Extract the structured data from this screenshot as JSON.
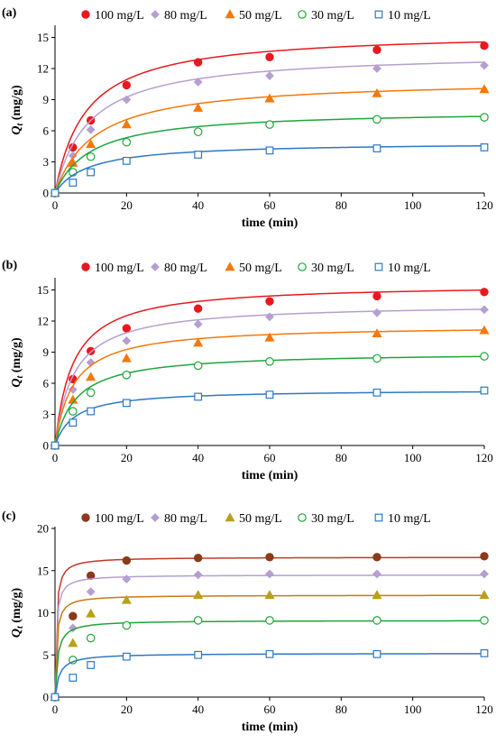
{
  "chart_data": [
    {
      "type": "scatter",
      "panel_label": "(a)",
      "xlabel": "time (min)",
      "ylabel": "Q",
      "ylabel_sub": "t",
      "ylabel_units": " (mg/g)",
      "xlim": [
        0,
        120
      ],
      "ylim": [
        0,
        16
      ],
      "xticks": [
        0,
        20,
        40,
        60,
        80,
        100,
        120
      ],
      "yticks": [
        0,
        3,
        6,
        9,
        12,
        15
      ],
      "x": [
        0,
        5,
        10,
        20,
        40,
        60,
        90,
        120
      ],
      "series": [
        {
          "name": "100 mg/L",
          "marker": "circle-filled",
          "color": "#e8191e",
          "line_color": "#e8191e",
          "qe": 15.6,
          "k": 0.0075,
          "values": [
            0,
            4.4,
            7.0,
            10.4,
            12.6,
            13.1,
            13.8,
            14.2
          ]
        },
        {
          "name": "80 mg/L",
          "marker": "diamond-filled",
          "color": "#b59fd0",
          "line_color": "#b59fd0",
          "qe": 13.6,
          "k": 0.0078,
          "values": [
            0,
            3.6,
            6.1,
            9.0,
            10.7,
            11.3,
            12.0,
            12.3
          ]
        },
        {
          "name": "50 mg/L",
          "marker": "triangle-filled",
          "color": "#f5780a",
          "line_color": "#f5780a",
          "qe": 11.0,
          "k": 0.0082,
          "values": [
            0,
            2.9,
            4.7,
            6.6,
            8.2,
            9.1,
            9.6,
            10.0
          ]
        },
        {
          "name": "30 mg/L",
          "marker": "circle-open",
          "color": "#1fa53c",
          "line_color": "#1fa53c",
          "qe": 8.0,
          "k": 0.0125,
          "values": [
            0,
            2.0,
            3.5,
            4.9,
            5.9,
            6.6,
            7.1,
            7.3
          ]
        },
        {
          "name": "10 mg/L",
          "marker": "square-open",
          "color": "#2e78c2",
          "line_color": "#2e78c2",
          "qe": 4.9,
          "k": 0.022,
          "values": [
            0,
            1.0,
            2.0,
            3.1,
            3.7,
            4.1,
            4.3,
            4.4
          ]
        }
      ]
    },
    {
      "type": "scatter",
      "panel_label": "(b)",
      "xlabel": "time (min)",
      "ylabel": "Q",
      "ylabel_sub": "t",
      "ylabel_units": " (mg/g)",
      "xlim": [
        0,
        120
      ],
      "ylim": [
        0,
        16
      ],
      "xticks": [
        0,
        20,
        40,
        60,
        80,
        100,
        120
      ],
      "yticks": [
        0,
        3,
        6,
        9,
        12,
        15
      ],
      "x": [
        0,
        5,
        10,
        20,
        40,
        60,
        90,
        120
      ],
      "series": [
        {
          "name": "100 mg/L",
          "marker": "circle-filled",
          "color": "#e8191e",
          "line_color": "#e8191e",
          "qe": 15.6,
          "k": 0.013,
          "values": [
            0,
            6.4,
            9.1,
            11.3,
            13.2,
            13.9,
            14.4,
            14.8
          ]
        },
        {
          "name": "80 mg/L",
          "marker": "diamond-filled",
          "color": "#b59fd0",
          "line_color": "#b59fd0",
          "qe": 13.7,
          "k": 0.014,
          "values": [
            0,
            5.4,
            8.0,
            10.1,
            11.7,
            12.4,
            12.8,
            13.1
          ]
        },
        {
          "name": "50 mg/L",
          "marker": "triangle-filled",
          "color": "#f5780a",
          "line_color": "#f5780a",
          "qe": 11.6,
          "k": 0.017,
          "values": [
            0,
            4.4,
            6.6,
            8.4,
            9.9,
            10.4,
            10.8,
            11.1
          ]
        },
        {
          "name": "30 mg/L",
          "marker": "circle-open",
          "color": "#1fa53c",
          "line_color": "#1fa53c",
          "qe": 9.0,
          "k": 0.019,
          "values": [
            0,
            3.3,
            5.1,
            6.8,
            7.7,
            8.1,
            8.4,
            8.6
          ]
        },
        {
          "name": "10 mg/L",
          "marker": "square-open",
          "color": "#2e78c2",
          "line_color": "#2e78c2",
          "qe": 5.4,
          "k": 0.035,
          "values": [
            0,
            2.2,
            3.3,
            4.1,
            4.7,
            4.9,
            5.1,
            5.3
          ]
        }
      ]
    },
    {
      "type": "scatter",
      "panel_label": "(c)",
      "xlabel": "time (min)",
      "ylabel": "Q",
      "ylabel_sub": "t",
      "ylabel_units": " (mg/g)",
      "xlim": [
        0,
        120
      ],
      "ylim": [
        0,
        20
      ],
      "xticks": [
        0,
        20,
        40,
        60,
        80,
        100,
        120
      ],
      "yticks": [
        0,
        5,
        10,
        15,
        20
      ],
      "x": [
        0,
        5,
        10,
        20,
        40,
        60,
        90,
        120
      ],
      "series": [
        {
          "name": "100 mg/L",
          "marker": "circle-filled",
          "color": "#8b3a1a",
          "line_color": "#c0392b",
          "qe": 16.6,
          "k": 0.18,
          "values": [
            0,
            9.6,
            14.4,
            16.2,
            16.5,
            16.6,
            16.6,
            16.7
          ]
        },
        {
          "name": "80 mg/L",
          "marker": "diamond-filled",
          "color": "#b59fd0",
          "line_color": "#b59fd0",
          "qe": 14.5,
          "k": 0.2,
          "values": [
            0,
            8.2,
            12.5,
            14.0,
            14.5,
            14.6,
            14.6,
            14.6
          ]
        },
        {
          "name": "50 mg/L",
          "marker": "triangle-filled",
          "color": "#b8a01a",
          "line_color": "#c87a14",
          "qe": 12.1,
          "k": 0.2,
          "values": [
            0,
            6.4,
            9.9,
            11.5,
            12.1,
            12.1,
            12.1,
            12.1
          ]
        },
        {
          "name": "30 mg/L",
          "marker": "circle-open",
          "color": "#1fa53c",
          "line_color": "#1fa53c",
          "qe": 9.1,
          "k": 0.16,
          "values": [
            0,
            4.4,
            7.0,
            8.5,
            9.1,
            9.1,
            9.1,
            9.1
          ]
        },
        {
          "name": "10 mg/L",
          "marker": "square-open",
          "color": "#2e78c2",
          "line_color": "#2e78c2",
          "qe": 5.2,
          "k": 0.16,
          "values": [
            0,
            2.3,
            3.8,
            4.8,
            5.0,
            5.1,
            5.1,
            5.2
          ]
        }
      ]
    }
  ]
}
